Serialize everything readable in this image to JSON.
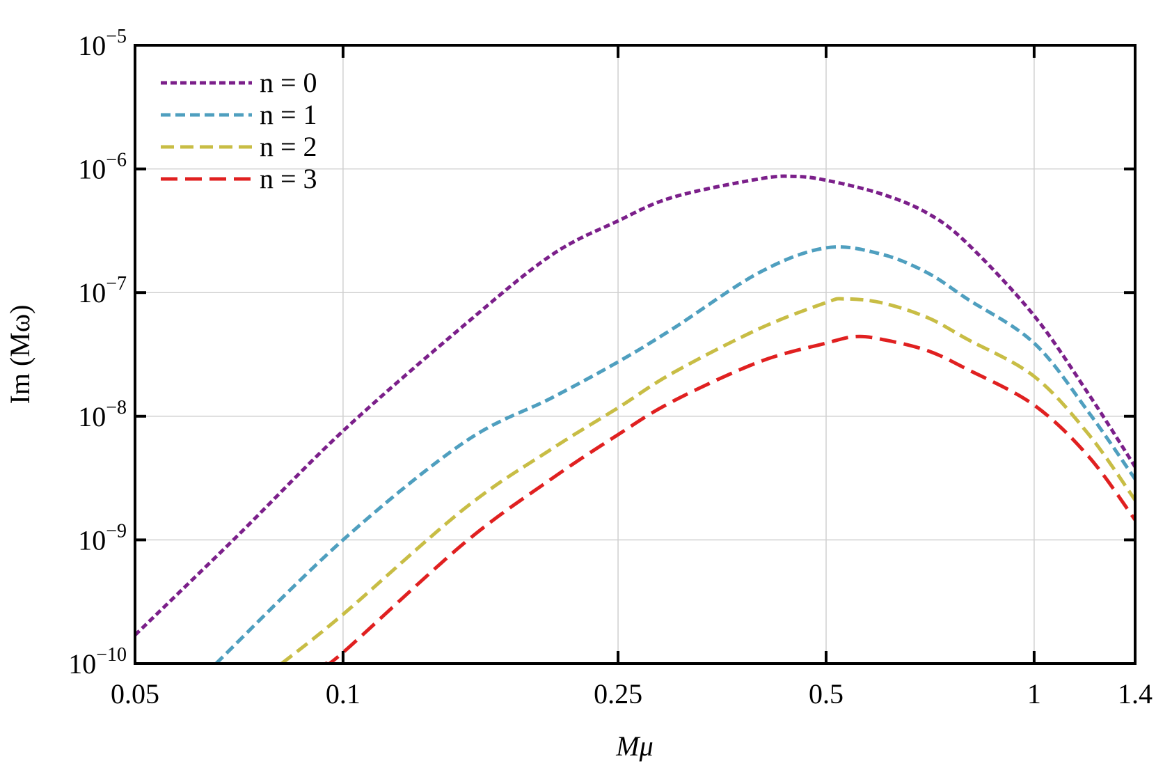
{
  "chart_data": {
    "type": "line",
    "title": "",
    "xlabel": "Mμ",
    "ylabel": "Im (Mω)",
    "xscale": "log",
    "yscale": "log",
    "xlim": [
      0.05,
      1.4
    ],
    "ylim": [
      1e-10,
      1e-05
    ],
    "grid": true,
    "legend_position": "top-left",
    "x_ticks": [
      {
        "value": 0.05,
        "label": "0.05"
      },
      {
        "value": 0.1,
        "label": "0.1"
      },
      {
        "value": 0.25,
        "label": "0.25"
      },
      {
        "value": 0.5,
        "label": "0.5"
      },
      {
        "value": 1,
        "label": "1"
      },
      {
        "value": 1.4,
        "label": "1.4"
      }
    ],
    "y_ticks": [
      {
        "value": 1e-10,
        "base": "10",
        "exp": "−10"
      },
      {
        "value": 1e-09,
        "base": "10",
        "exp": "−9"
      },
      {
        "value": 1e-08,
        "base": "10",
        "exp": "−8"
      },
      {
        "value": 1e-07,
        "base": "10",
        "exp": "−7"
      },
      {
        "value": 1e-06,
        "base": "10",
        "exp": "−6"
      },
      {
        "value": 1e-05,
        "base": "10",
        "exp": "−5"
      }
    ],
    "series": [
      {
        "name": "n = 0",
        "color": "#7b1f8a",
        "dash": "short",
        "x": [
          0.05,
          0.07,
          0.1,
          0.15,
          0.2,
          0.25,
          0.3,
          0.4,
          0.45,
          0.5,
          0.6,
          0.7,
          0.8,
          1.0,
          1.2,
          1.4
        ],
        "y": [
          1.7e-10,
          1.05e-09,
          7.6e-09,
          5.5e-08,
          2e-07,
          3.8e-07,
          5.9e-07,
          8.3e-07,
          8.7e-07,
          8.1e-07,
          6.3e-07,
          4.4e-07,
          2.5e-07,
          6.5e-08,
          1.5e-08,
          3.9e-09
        ]
      },
      {
        "name": "n = 1",
        "color": "#4f9fbf",
        "dash": "medium",
        "x": [
          0.0655,
          0.1,
          0.15,
          0.2,
          0.25,
          0.3,
          0.4,
          0.5,
          0.6,
          0.7,
          0.8,
          1.0,
          1.2,
          1.4
        ],
        "y": [
          1e-10,
          1e-09,
          6.2e-09,
          1.4e-08,
          2.75e-08,
          5.1e-08,
          1.45e-07,
          2.3e-07,
          2.05e-07,
          1.45e-07,
          8.9e-08,
          3.9e-08,
          1.07e-08,
          3.1e-09
        ]
      },
      {
        "name": "n = 2",
        "color": "#c8bd45",
        "dash": "long",
        "x": [
          0.0815,
          0.1,
          0.15,
          0.2,
          0.25,
          0.3,
          0.4,
          0.5,
          0.53,
          0.6,
          0.7,
          0.8,
          1.0,
          1.2,
          1.4
        ],
        "y": [
          1e-10,
          2.5e-10,
          1.8e-09,
          5.4e-09,
          1.17e-08,
          2.24e-08,
          5.1e-08,
          8.3e-08,
          8.9e-08,
          8.3e-08,
          6.3e-08,
          4.2e-08,
          2.1e-08,
          7.1e-09,
          2.1e-09
        ]
      },
      {
        "name": "n = 3",
        "color": "#e02020",
        "dash": "longer",
        "x": [
          0.0944,
          0.1,
          0.15,
          0.2,
          0.25,
          0.3,
          0.4,
          0.5,
          0.55,
          0.6,
          0.7,
          0.8,
          1.0,
          1.2,
          1.4
        ],
        "y": [
          1e-10,
          1.23e-10,
          9.5e-10,
          3.1e-09,
          7.1e-09,
          1.32e-08,
          2.75e-08,
          3.9e-08,
          4.4e-08,
          4.2e-08,
          3.4e-08,
          2.4e-08,
          1.23e-08,
          4.7e-09,
          1.45e-09
        ]
      }
    ]
  }
}
